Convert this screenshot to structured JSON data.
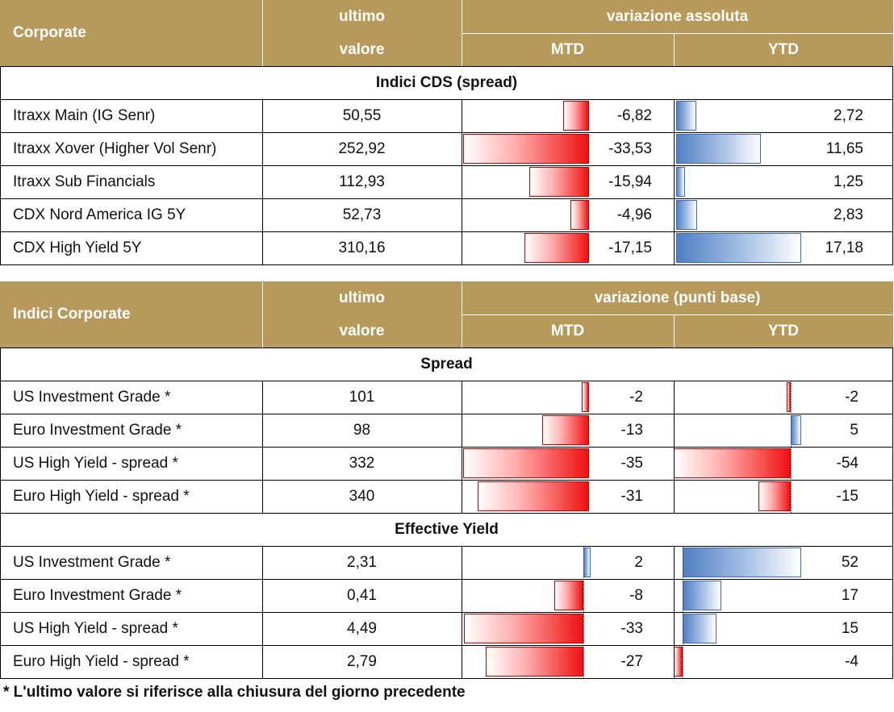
{
  "table1": {
    "header": {
      "label": "Corporate",
      "col_last_top": "ultimo",
      "col_last_bottom": "valore",
      "col_change": "variazione assoluta",
      "col_mtd": "MTD",
      "col_ytd": "YTD"
    },
    "section": "Indici CDS (spread)",
    "rows": [
      {
        "name": "Itraxx Main (IG Senr)",
        "last": "50,55",
        "mtd": -6.82,
        "mtd_label": "-6,82",
        "ytd": 2.72,
        "ytd_label": "2,72"
      },
      {
        "name": "Itraxx Xover (Higher Vol Senr)",
        "last": "252,92",
        "mtd": -33.53,
        "mtd_label": "-33,53",
        "ytd": 11.65,
        "ytd_label": "11,65"
      },
      {
        "name": "Itraxx Sub Financials",
        "last": "112,93",
        "mtd": -15.94,
        "mtd_label": "-15,94",
        "ytd": 1.25,
        "ytd_label": "1,25"
      },
      {
        "name": "CDX Nord America IG 5Y",
        "last": "52,73",
        "mtd": -4.96,
        "mtd_label": "-4,96",
        "ytd": 2.83,
        "ytd_label": "2,83"
      },
      {
        "name": "CDX High Yield 5Y",
        "last": "310,16",
        "mtd": -17.15,
        "mtd_label": "-17,15",
        "ytd": 17.18,
        "ytd_label": "17,18"
      }
    ]
  },
  "table2": {
    "header": {
      "label": "Indici Corporate",
      "col_last_top": "ultimo",
      "col_last_bottom": "valore",
      "col_change": "variazione (punti base)",
      "col_mtd": "MTD",
      "col_ytd": "YTD"
    },
    "section_spread": "Spread",
    "spread_rows": [
      {
        "name": "US Investment Grade *",
        "last": "101",
        "mtd": -2,
        "mtd_label": "-2",
        "ytd": -2,
        "ytd_label": "-2"
      },
      {
        "name": "Euro Investment Grade *",
        "last": "98",
        "mtd": -13,
        "mtd_label": "-13",
        "ytd": 5,
        "ytd_label": "5"
      },
      {
        "name": "US High Yield  - spread *",
        "last": "332",
        "mtd": -35,
        "mtd_label": "-35",
        "ytd": -54,
        "ytd_label": "-54"
      },
      {
        "name": "Euro High Yield  - spread *",
        "last": "340",
        "mtd": -31,
        "mtd_label": "-31",
        "ytd": -15,
        "ytd_label": "-15"
      }
    ],
    "section_yield": "Effective Yield",
    "yield_rows": [
      {
        "name": "US Investment Grade *",
        "last": "2,31",
        "mtd": 2,
        "mtd_label": "2",
        "ytd": 52,
        "ytd_label": "52"
      },
      {
        "name": "Euro Investment Grade *",
        "last": "0,41",
        "mtd": -8,
        "mtd_label": "-8",
        "ytd": 17,
        "ytd_label": "17"
      },
      {
        "name": "US High Yield  - spread *",
        "last": "4,49",
        "mtd": -33,
        "mtd_label": "-33",
        "ytd": 15,
        "ytd_label": "15"
      },
      {
        "name": "Euro High Yield  - spread *",
        "last": "2,79",
        "mtd": -27,
        "mtd_label": "-27",
        "ytd": -4,
        "ytd_label": "-4"
      }
    ]
  },
  "footnote": "* L'ultimo valore si riferisce alla chiusura del giorno precedente",
  "colors": {
    "header_bg": "#b79a5b",
    "negative_bar": "#ee1111",
    "positive_bar": "#4f7fc4"
  }
}
